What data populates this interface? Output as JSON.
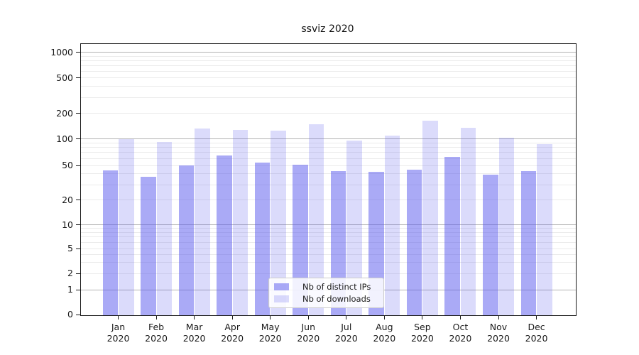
{
  "title": "ssviz 2020",
  "legend": {
    "items": [
      {
        "label": "Nb of distinct IPs",
        "color": "rgba(85,85,238,0.5)"
      },
      {
        "label": "Nb of downloads",
        "color": "rgba(85,85,238,0.21)"
      }
    ]
  },
  "chart_data": {
    "type": "bar",
    "title": "ssviz 2020",
    "categories": [
      "Jan 2020",
      "Feb 2020",
      "Mar 2020",
      "Apr 2020",
      "May 2020",
      "Jun 2020",
      "Jul 2020",
      "Aug 2020",
      "Sep 2020",
      "Oct 2020",
      "Nov 2020",
      "Dec 2020"
    ],
    "series": [
      {
        "name": "Nb of distinct IPs",
        "color": "rgba(85,85,238,0.5)",
        "values": [
          44,
          37,
          50,
          65,
          54,
          51,
          43,
          42,
          45,
          63,
          39,
          43
        ]
      },
      {
        "name": "Nb of downloads",
        "color": "rgba(85,85,238,0.21)",
        "values": [
          100,
          92,
          133,
          127,
          124,
          150,
          96,
          109,
          163,
          135,
          104,
          87
        ]
      }
    ],
    "xlabel": "",
    "ylabel": "",
    "yscale": "symlog",
    "y_ticks": [
      0,
      1,
      2,
      5,
      10,
      20,
      50,
      100,
      200,
      500,
      1000
    ],
    "ylim": [
      0,
      1300
    ],
    "grid": true,
    "legend_position": "lower center",
    "colors": {
      "bar_dark_flat": "#aaaaf6",
      "bar_light_flat": "#dbdbfb",
      "grid_major": "#b3b3b3",
      "grid_minor": "#ebebeb",
      "spine": "#1a1a1a",
      "text": "#1a1a1a"
    }
  }
}
